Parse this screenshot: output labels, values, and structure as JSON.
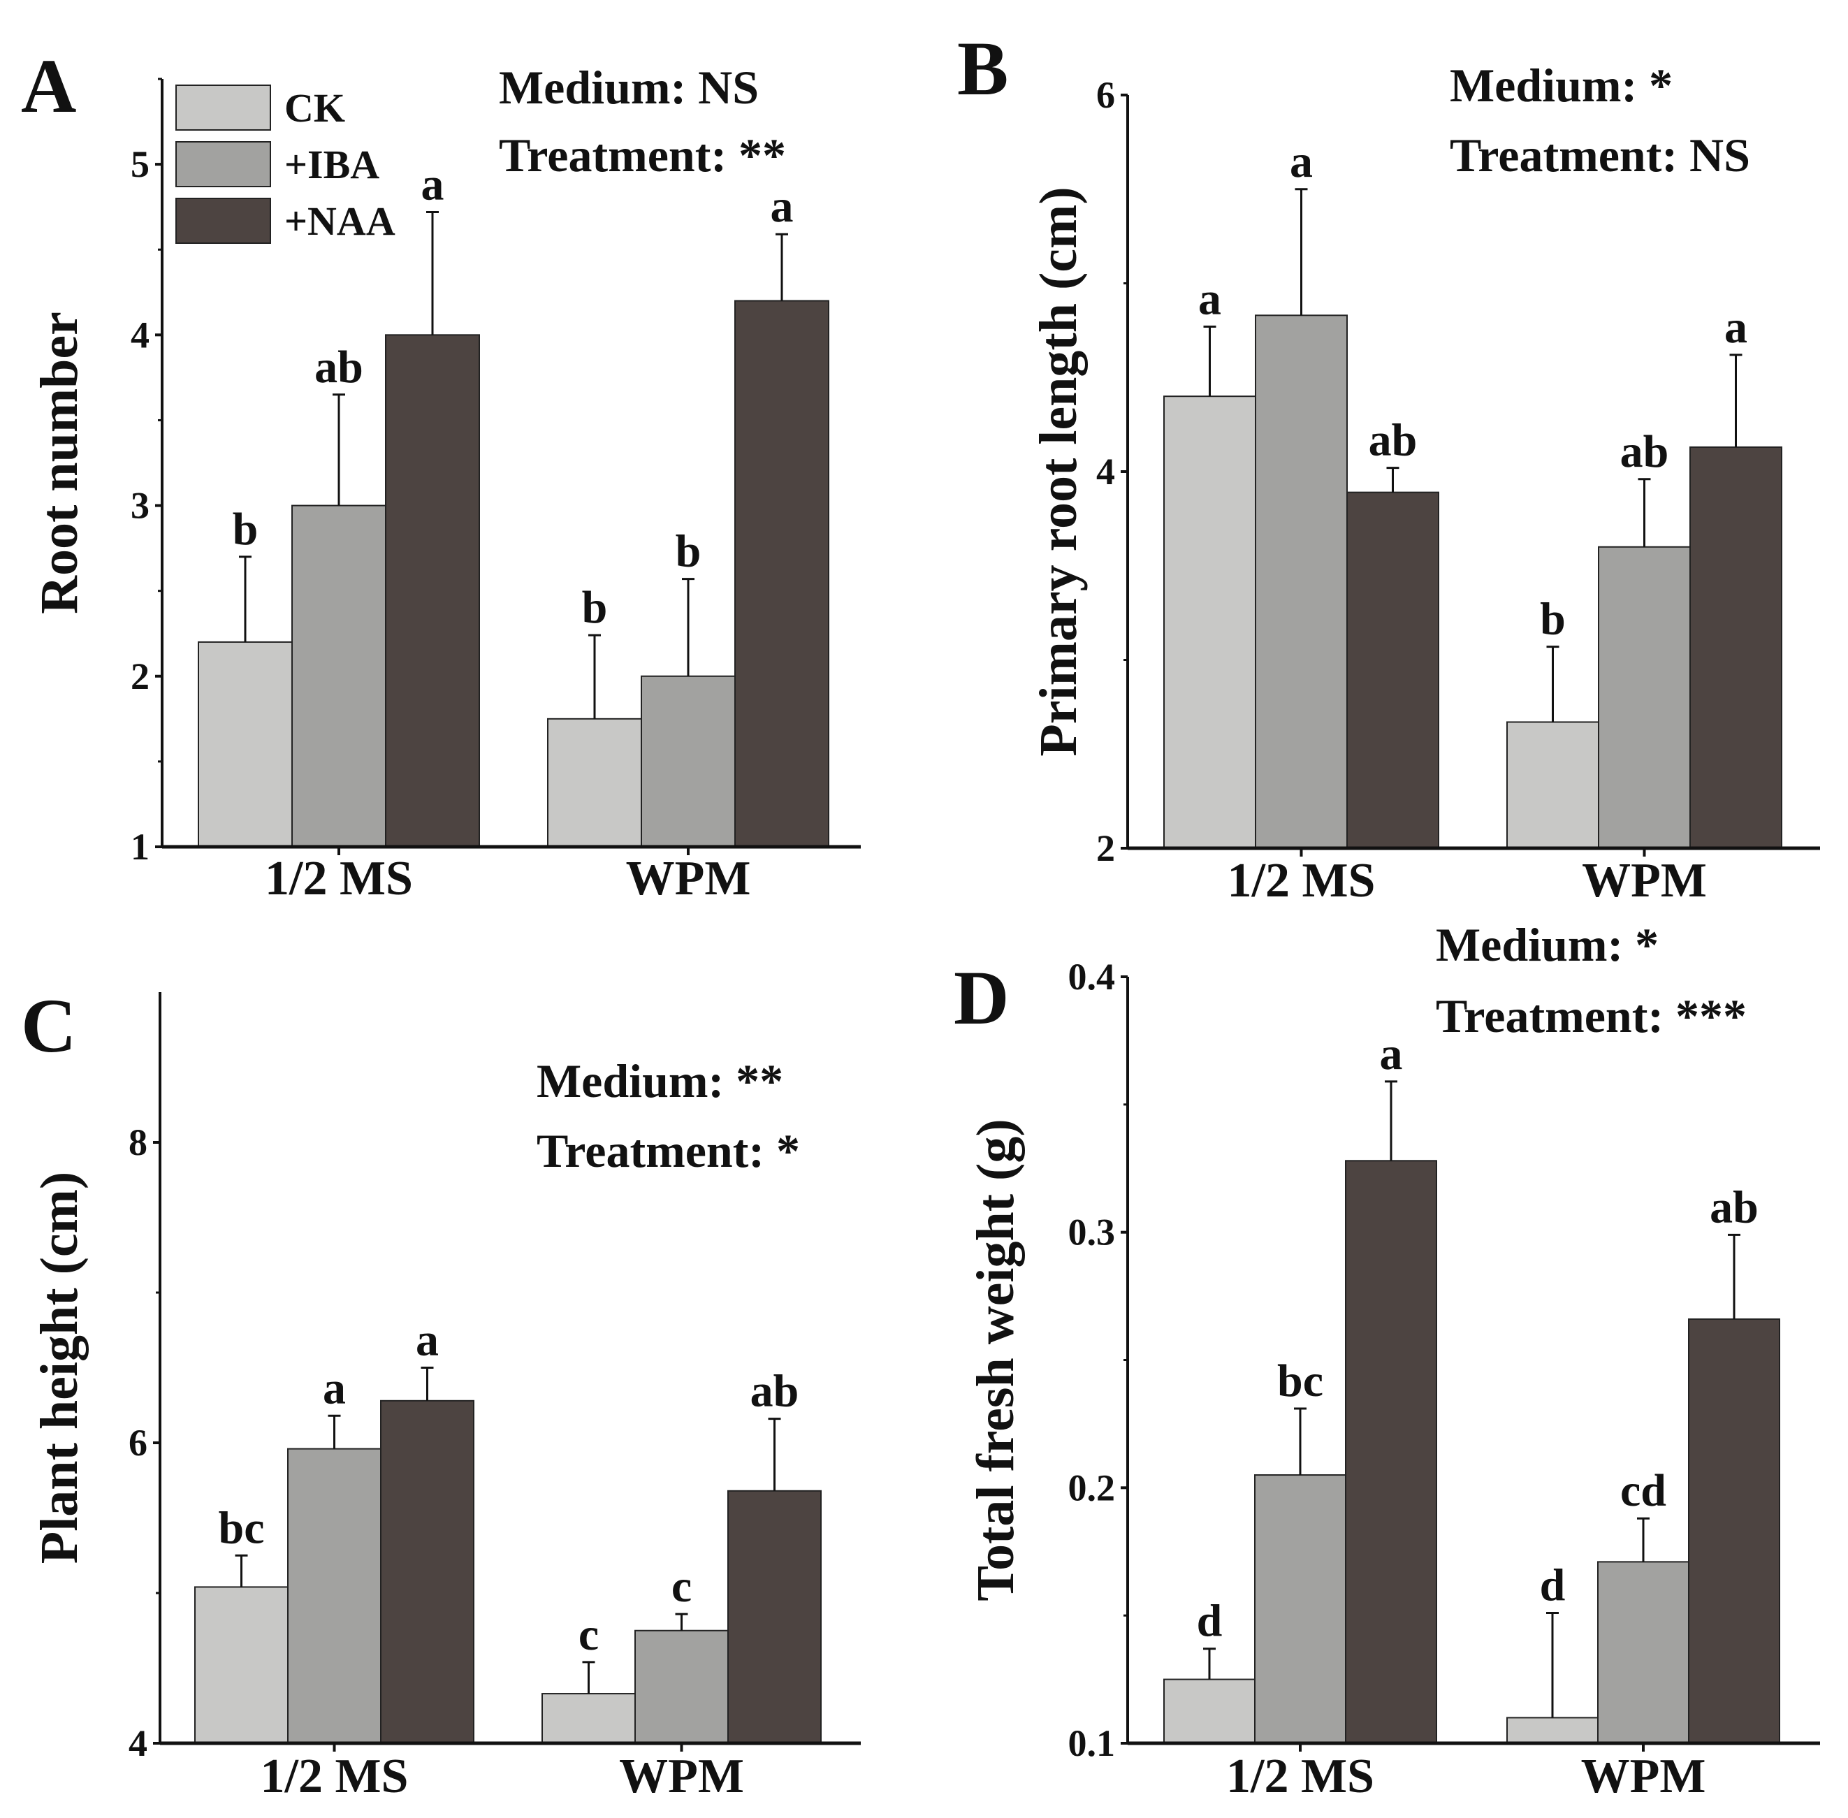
{
  "legend": [
    {
      "label": "CK",
      "color": "#c8c8c6"
    },
    {
      "label": "+IBA",
      "color": "#a2a2a0"
    },
    {
      "label": "+NAA",
      "color": "#4d4441"
    }
  ],
  "chart_data": [
    {
      "panel": "A",
      "type": "bar",
      "ylabel": "Root number",
      "categories": [
        "1/2 MS",
        "WPM"
      ],
      "ylim": [
        1,
        5.5
      ],
      "yticks": [
        1,
        2,
        3,
        4,
        5
      ],
      "series": [
        {
          "name": "CK",
          "values": [
            2.2,
            1.75
          ],
          "errors": [
            0.5,
            0.49
          ],
          "letters": [
            "b",
            "b"
          ]
        },
        {
          "name": "+IBA",
          "values": [
            3.0,
            2.0
          ],
          "errors": [
            0.65,
            0.57
          ],
          "letters": [
            "ab",
            "b"
          ]
        },
        {
          "name": "+NAA",
          "values": [
            4.0,
            4.2
          ],
          "errors": [
            0.72,
            0.39
          ],
          "letters": [
            "a",
            "a"
          ]
        }
      ],
      "annotations": [
        "Medium: NS",
        "Treatment: **"
      ]
    },
    {
      "panel": "B",
      "type": "bar",
      "ylabel": "Primary root length (cm)",
      "categories": [
        "1/2 MS",
        "WPM"
      ],
      "ylim": [
        2,
        6
      ],
      "yticks": [
        2,
        4,
        6
      ],
      "series": [
        {
          "name": "CK",
          "values": [
            4.4,
            2.67
          ],
          "errors": [
            0.37,
            0.4
          ],
          "letters": [
            "a",
            "b"
          ]
        },
        {
          "name": "+IBA",
          "values": [
            4.83,
            3.6
          ],
          "errors": [
            0.67,
            0.36
          ],
          "letters": [
            "a",
            "ab"
          ]
        },
        {
          "name": "+NAA",
          "values": [
            3.89,
            4.13
          ],
          "errors": [
            0.13,
            0.49
          ],
          "letters": [
            "ab",
            "a"
          ]
        }
      ],
      "annotations": [
        "Medium: *",
        "Treatment: NS"
      ]
    },
    {
      "panel": "C",
      "type": "bar",
      "ylabel": "Plant height (cm)",
      "categories": [
        "1/2 MS",
        "WPM"
      ],
      "ylim": [
        4,
        9
      ],
      "yticks": [
        4,
        6,
        8
      ],
      "series": [
        {
          "name": "CK",
          "values": [
            5.04,
            4.33
          ],
          "errors": [
            0.21,
            0.21
          ],
          "letters": [
            "bc",
            "c"
          ]
        },
        {
          "name": "+IBA",
          "values": [
            5.96,
            4.75
          ],
          "errors": [
            0.22,
            0.11
          ],
          "letters": [
            "a",
            "c"
          ]
        },
        {
          "name": "+NAA",
          "values": [
            6.28,
            5.68
          ],
          "errors": [
            0.22,
            0.48
          ],
          "letters": [
            "a",
            "ab"
          ]
        }
      ],
      "annotations": [
        "Medium: **",
        "Treatment: *"
      ]
    },
    {
      "panel": "D",
      "type": "bar",
      "ylabel": "Total fresh weight (g)",
      "categories": [
        "1/2 MS",
        "WPM"
      ],
      "ylim": [
        0.1,
        0.4
      ],
      "yticks": [
        0.1,
        0.2,
        0.3,
        0.4
      ],
      "series": [
        {
          "name": "CK",
          "values": [
            0.125,
            0.11
          ],
          "errors": [
            0.012,
            0.041
          ],
          "letters": [
            "d",
            "d"
          ]
        },
        {
          "name": "+IBA",
          "values": [
            0.205,
            0.171
          ],
          "errors": [
            0.026,
            0.017
          ],
          "letters": [
            "bc",
            "cd"
          ]
        },
        {
          "name": "+NAA",
          "values": [
            0.328,
            0.266
          ],
          "errors": [
            0.031,
            0.033
          ],
          "letters": [
            "a",
            "ab"
          ]
        }
      ],
      "annotations": [
        "Medium: *",
        "Treatment: ***"
      ]
    }
  ]
}
